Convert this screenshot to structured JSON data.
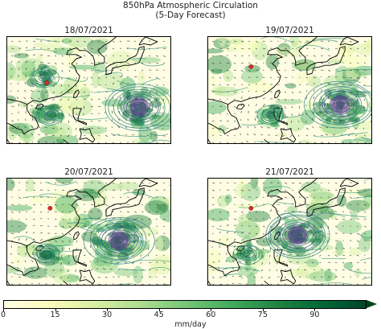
{
  "title_line1": "850hPa Atmospheric Circulation",
  "title_line2": "(5-Day Forecast)",
  "colorbar": {
    "unit": "mm/day",
    "ticks": [
      "0",
      "15",
      "30",
      "45",
      "60",
      "75",
      "90"
    ],
    "range": [
      0,
      105
    ],
    "colors": [
      "#ffffe5",
      "#f7fcb9",
      "#d9f0a3",
      "#addd8e",
      "#78c679",
      "#41ab5d",
      "#238443",
      "#006837",
      "#004529"
    ]
  },
  "chart_data": [
    {
      "type": "heatmap",
      "title": "18/07/2021",
      "vortices": [
        {
          "name": "typhoon",
          "lon": 140,
          "lat": 19
        },
        {
          "name": "depression",
          "lon": 113,
          "lat": 16
        },
        {
          "name": "cyclone-north",
          "lon": 111,
          "lat": 30
        }
      ],
      "marker": {
        "lon": 112,
        "lat": 28
      }
    },
    {
      "type": "heatmap",
      "title": "19/07/2021",
      "vortices": [
        {
          "name": "typhoon",
          "lon": 140,
          "lat": 20
        },
        {
          "name": "depression",
          "lon": 119,
          "lat": 16
        }
      ],
      "marker": {
        "lon": 113,
        "lat": 34
      }
    },
    {
      "type": "heatmap",
      "title": "20/07/2021",
      "vortices": [
        {
          "name": "typhoon",
          "lon": 134,
          "lat": 22
        },
        {
          "name": "depression",
          "lon": 112,
          "lat": 17
        }
      ],
      "marker": {
        "lon": 113,
        "lat": 34
      }
    },
    {
      "type": "heatmap",
      "title": "21/07/2021",
      "vortices": [
        {
          "name": "typhoon",
          "lon": 127,
          "lat": 24
        },
        {
          "name": "depression",
          "lon": 112,
          "lat": 17
        }
      ],
      "marker": {
        "lon": 113,
        "lat": 34
      }
    }
  ]
}
